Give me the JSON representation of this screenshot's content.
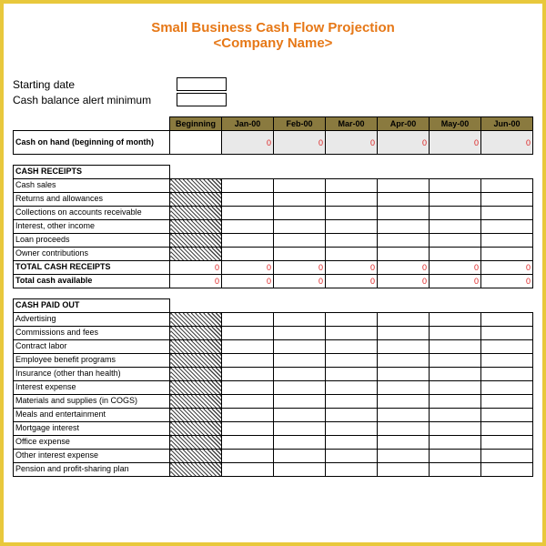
{
  "title": {
    "line1": "Small Business Cash Flow Projection",
    "line2": "<Company Name>",
    "color": "#e67817",
    "fontsize": 15
  },
  "meta": {
    "starting_date_label": "Starting date",
    "starting_date_value": "",
    "alert_min_label": "Cash balance alert minimum",
    "alert_min_value": ""
  },
  "spreadsheet": {
    "header_bg": "#8a7a3f",
    "header_fg": "#000000",
    "zero_color": "#d22",
    "periods": [
      "Beginning",
      "Jan-00",
      "Feb-00",
      "Mar-00",
      "Apr-00",
      "May-00",
      "Jun-00"
    ],
    "blocks": [
      {
        "type": "row",
        "label": "Cash on hand (beginning of month)",
        "bold": true,
        "tall": true,
        "cells": [
          "",
          "0",
          "0",
          "0",
          "0",
          "0",
          "0"
        ],
        "zero": true,
        "shade_months": true
      },
      {
        "type": "spacer"
      },
      {
        "type": "section",
        "label": "CASH RECEIPTS",
        "rows": [
          {
            "label": "Cash sales",
            "hatched_beginning": true
          },
          {
            "label": "Returns and allowances",
            "hatched_beginning": true
          },
          {
            "label": "Collections on accounts receivable",
            "hatched_beginning": true
          },
          {
            "label": "Interest, other income",
            "hatched_beginning": true
          },
          {
            "label": "Loan proceeds",
            "hatched_beginning": true
          },
          {
            "label": "Owner contributions",
            "hatched_beginning": true
          }
        ],
        "totals": [
          {
            "label": "TOTAL CASH RECEIPTS",
            "bold": true,
            "cells": [
              "0",
              "0",
              "0",
              "0",
              "0",
              "0",
              "0"
            ],
            "zero": true
          },
          {
            "label": "Total cash available",
            "bold": true,
            "cells": [
              "0",
              "0",
              "0",
              "0",
              "0",
              "0",
              "0"
            ],
            "zero": true
          }
        ]
      },
      {
        "type": "spacer"
      },
      {
        "type": "section",
        "label": "CASH PAID OUT",
        "rows": [
          {
            "label": "Advertising",
            "hatched_beginning": true
          },
          {
            "label": "Commissions and fees",
            "hatched_beginning": true
          },
          {
            "label": "Contract labor",
            "hatched_beginning": true
          },
          {
            "label": "Employee benefit programs",
            "hatched_beginning": true
          },
          {
            "label": "Insurance (other than health)",
            "hatched_beginning": true
          },
          {
            "label": "Interest expense",
            "hatched_beginning": true
          },
          {
            "label": "Materials and supplies (in COGS)",
            "hatched_beginning": true
          },
          {
            "label": "Meals and entertainment",
            "hatched_beginning": true
          },
          {
            "label": "Mortgage interest",
            "hatched_beginning": true
          },
          {
            "label": "Office expense",
            "hatched_beginning": true
          },
          {
            "label": "Other interest expense",
            "hatched_beginning": true
          },
          {
            "label": "Pension and profit-sharing plan",
            "hatched_beginning": true
          }
        ],
        "totals": []
      }
    ]
  },
  "frame_border_color": "#e8c83c"
}
